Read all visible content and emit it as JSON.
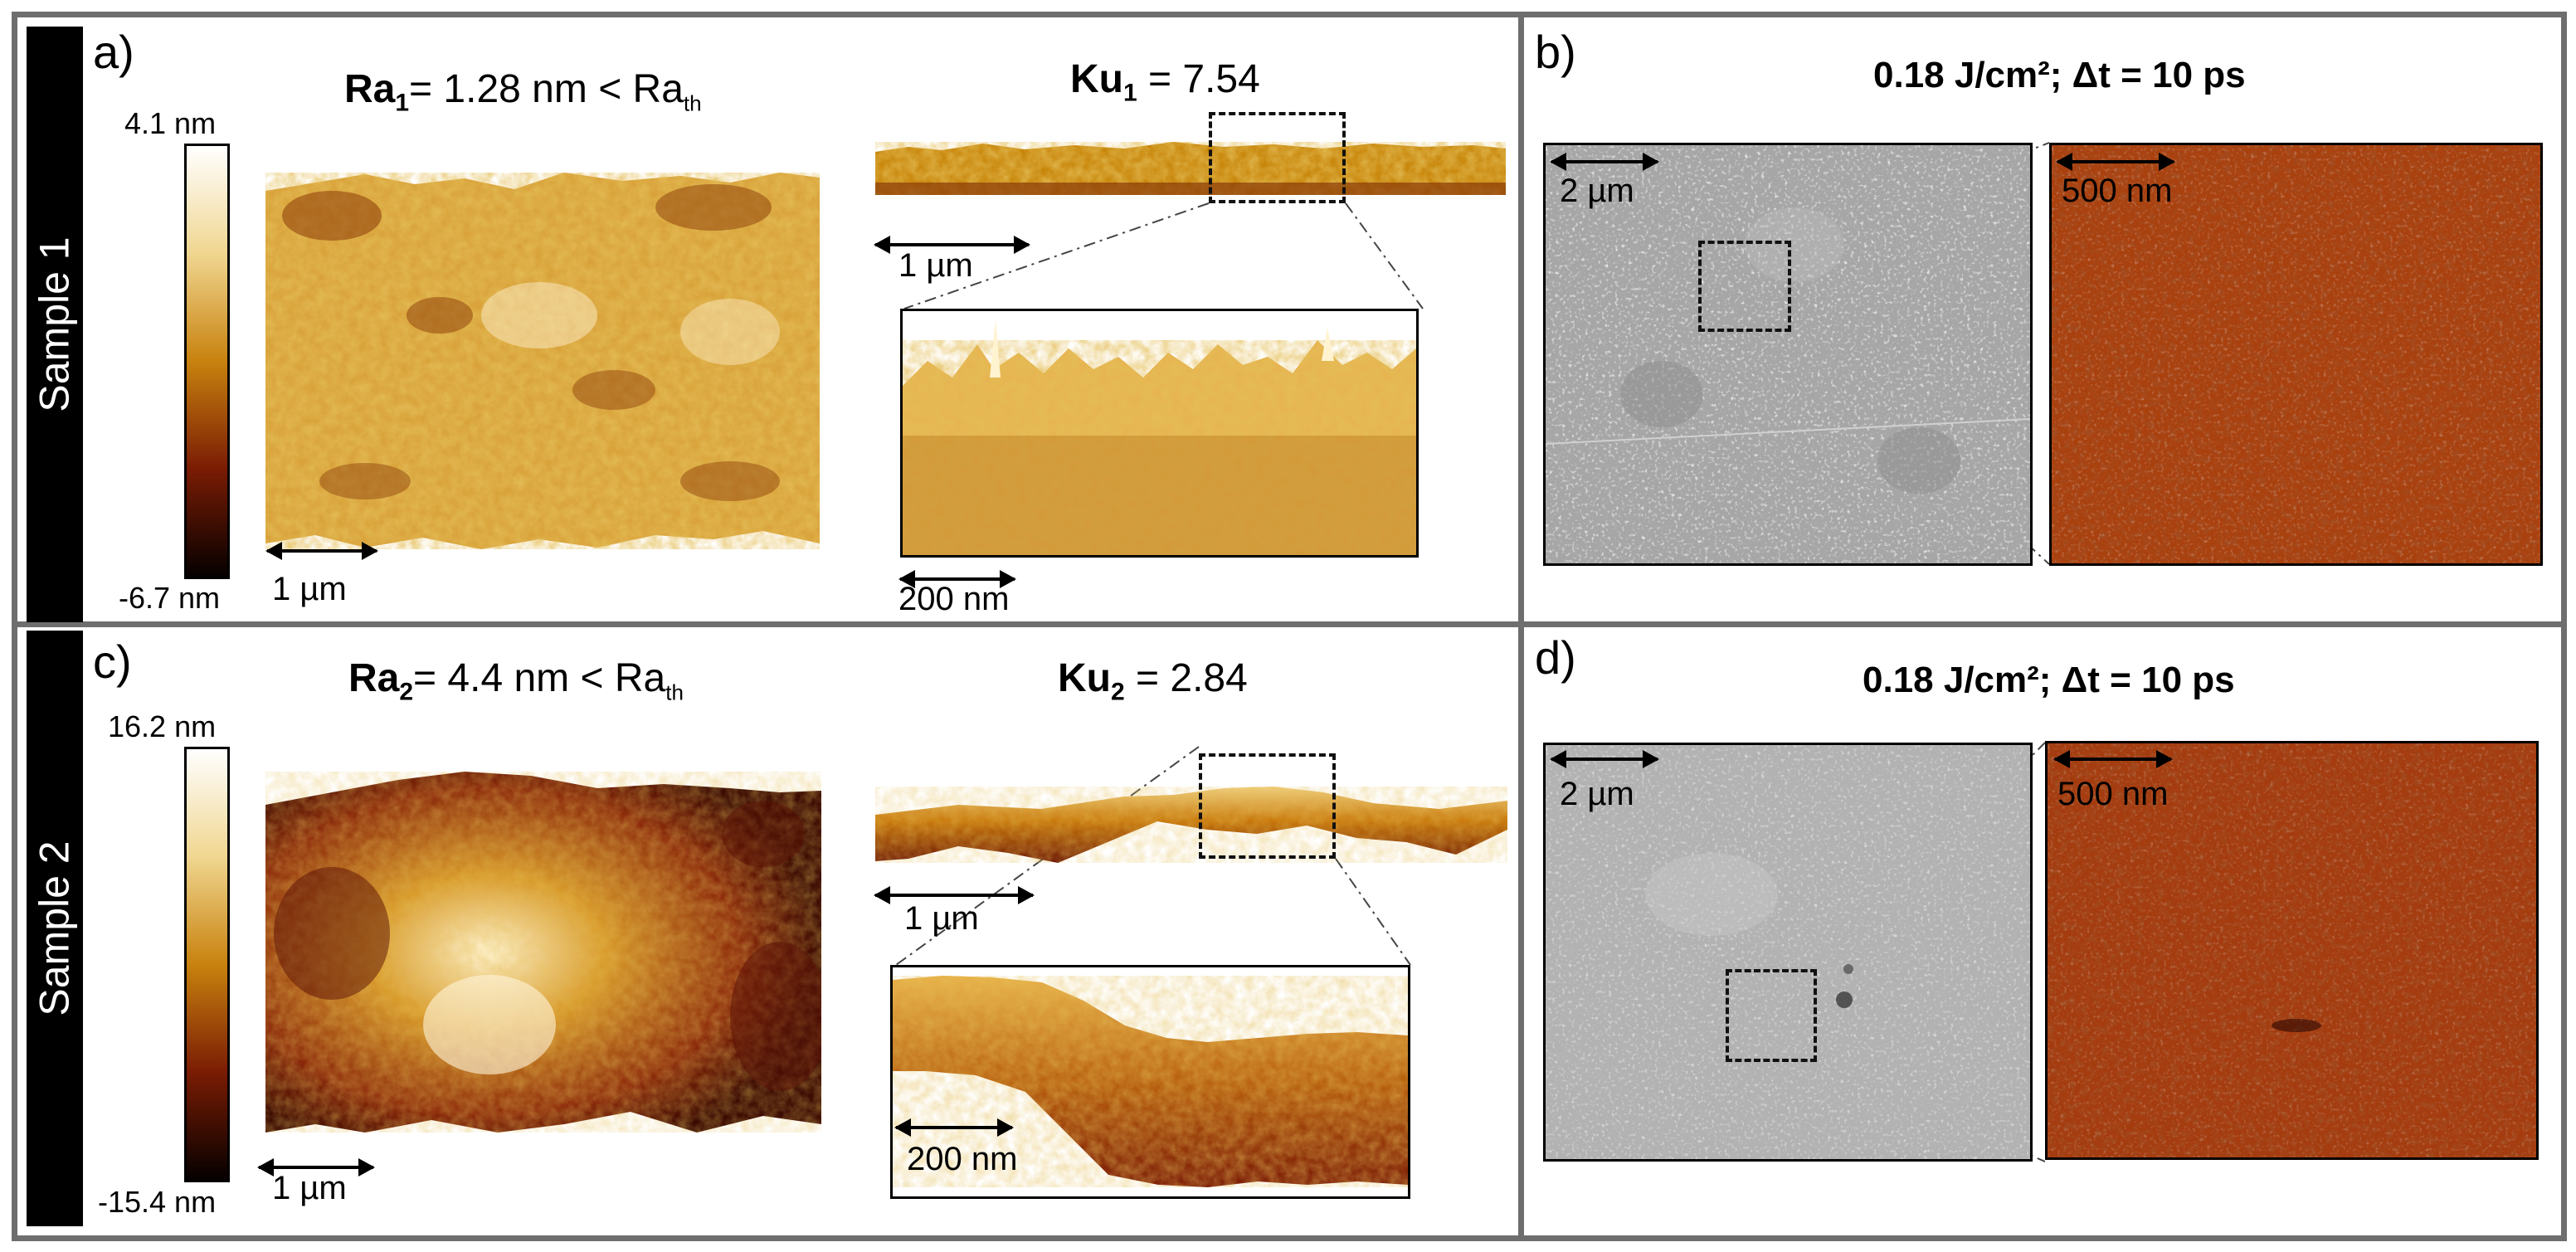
{
  "samples": {
    "sample1": "Sample 1",
    "sample2": "Sample 2"
  },
  "panel_a": {
    "label": "a)",
    "ra_sym": "Ra",
    "ra_sub": "1",
    "ra_text": "= 1.28 nm < Ra",
    "ra_th": "th",
    "ku_sym": "Ku",
    "ku_sub": "1",
    "ku_text": " = 7.54",
    "cbar_max": "4.1 nm",
    "cbar_min": "-6.7 nm",
    "scale_3d": "1 µm",
    "scale_profile": "1 µm",
    "scale_zoom": "200 nm"
  },
  "panel_b": {
    "label": "b)",
    "title": "0.18 J/cm²; Δt = 10 ps",
    "scale_sem": "2 µm",
    "scale_afm": "500 nm"
  },
  "panel_c": {
    "label": "c)",
    "ra_sym": "Ra",
    "ra_sub": "2",
    "ra_text": "= 4.4 nm < Ra",
    "ra_th": "th",
    "ku_sym": "Ku",
    "ku_sub": "2",
    "ku_text": " = 2.84",
    "cbar_max": "16.2 nm",
    "cbar_min": "-15.4 nm",
    "scale_3d": "1 µm",
    "scale_profile": "1 µm",
    "scale_zoom": "200 nm"
  },
  "panel_d": {
    "label": "d)",
    "title": "0.18 J/cm²; Δt = 10 ps",
    "scale_sem": "2 µm",
    "scale_afm": "500 nm"
  },
  "colors": {
    "frame": "#6e6e6e",
    "afm_light": "#fff8e0",
    "afm_mid": "#c8860a",
    "afm_dark": "#3a0a02",
    "sem_gray": "#a9a9a9",
    "afm_red": "#b04a17"
  }
}
